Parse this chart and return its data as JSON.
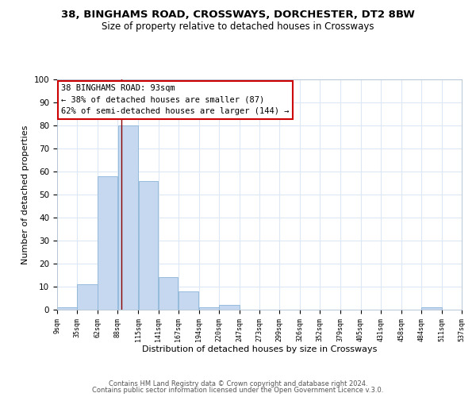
{
  "title1": "38, BINGHAMS ROAD, CROSSWAYS, DORCHESTER, DT2 8BW",
  "title2": "Size of property relative to detached houses in Crossways",
  "xlabel": "Distribution of detached houses by size in Crossways",
  "ylabel": "Number of detached properties",
  "bar_edges": [
    9,
    35,
    62,
    88,
    115,
    141,
    167,
    194,
    220,
    247,
    273,
    299,
    326,
    352,
    379,
    405,
    431,
    458,
    484,
    511,
    537
  ],
  "bar_heights": [
    1,
    11,
    58,
    80,
    56,
    14,
    8,
    1,
    2,
    0,
    0,
    0,
    0,
    0,
    0,
    0,
    0,
    0,
    1,
    0
  ],
  "bar_color": "#c5d8f0",
  "bar_edgecolor": "#8ab4d8",
  "vline_x": 93,
  "vline_color": "#8b0000",
  "ylim": [
    0,
    100
  ],
  "xlim": [
    9,
    537
  ],
  "annotation_line1": "38 BINGHAMS ROAD: 93sqm",
  "annotation_line2": "← 38% of detached houses are smaller (87)",
  "annotation_line3": "62% of semi-detached houses are larger (144) →",
  "annotation_box_color": "#ffffff",
  "annotation_box_edgecolor": "#cc0000",
  "footer1": "Contains HM Land Registry data © Crown copyright and database right 2024.",
  "footer2": "Contains public sector information licensed under the Open Government Licence v.3.0.",
  "grid_color": "#dce8f5",
  "tick_labels": [
    "9sqm",
    "35sqm",
    "62sqm",
    "88sqm",
    "115sqm",
    "141sqm",
    "167sqm",
    "194sqm",
    "220sqm",
    "247sqm",
    "273sqm",
    "299sqm",
    "326sqm",
    "352sqm",
    "379sqm",
    "405sqm",
    "431sqm",
    "458sqm",
    "484sqm",
    "511sqm",
    "537sqm"
  ],
  "yticks": [
    0,
    10,
    20,
    30,
    40,
    50,
    60,
    70,
    80,
    90,
    100
  ]
}
